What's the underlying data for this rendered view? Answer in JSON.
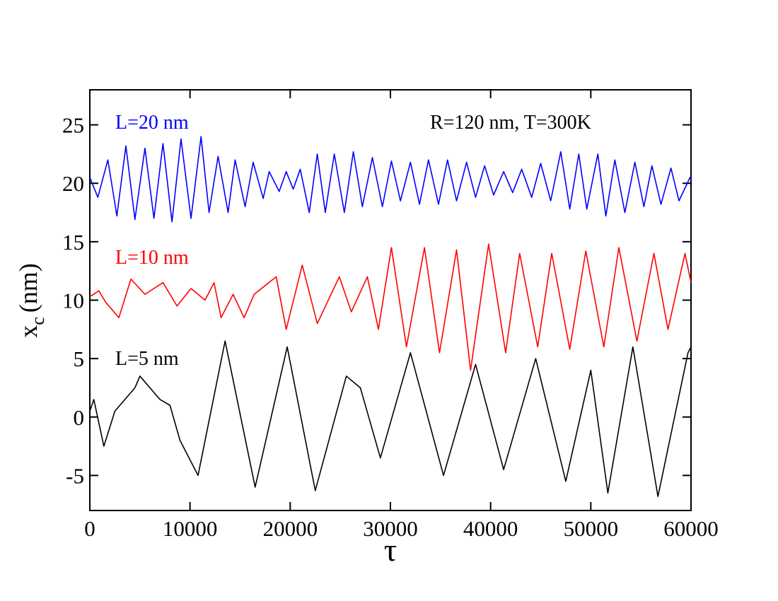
{
  "chart_data": {
    "type": "line",
    "annotation": "R=120 nm,  T=300K",
    "xlabel": "τ",
    "ylabel": {
      "base": "x",
      "sub": "c",
      "unit": "(nm)"
    },
    "xlim": [
      0,
      60000
    ],
    "xticks": [
      0,
      10000,
      20000,
      30000,
      40000,
      50000,
      60000
    ],
    "ylim": [
      -8,
      28
    ],
    "yticks": [
      -5,
      0,
      5,
      10,
      15,
      20,
      25
    ],
    "series": [
      {
        "name": "L=20 nm",
        "color": "#0000ff",
        "x": [
          0,
          800,
          1800,
          2700,
          3600,
          4500,
          5500,
          6400,
          7300,
          8200,
          9100,
          10100,
          11100,
          11900,
          12800,
          13800,
          14500,
          15500,
          16300,
          17300,
          17900,
          18900,
          19600,
          20300,
          21000,
          21900,
          22700,
          23500,
          24400,
          25400,
          26300,
          27200,
          28200,
          29200,
          30100,
          31000,
          32000,
          32900,
          33800,
          34800,
          35700,
          36600,
          37600,
          38500,
          39400,
          40300,
          41300,
          42200,
          43100,
          44100,
          45000,
          46000,
          47000,
          47900,
          48800,
          49600,
          50700,
          51500,
          52400,
          53400,
          54400,
          55300,
          56100,
          57000,
          58000,
          58800,
          59900,
          60000
        ],
        "values": [
          20.5,
          18.8,
          22,
          17.2,
          23.2,
          16.9,
          23,
          17,
          23.4,
          16.7,
          23.8,
          17,
          24,
          17.5,
          22.3,
          17.5,
          22,
          18,
          21.8,
          18.7,
          21,
          19.3,
          21,
          19.5,
          21.2,
          17.5,
          22.5,
          17.5,
          22.5,
          17.5,
          22.7,
          18,
          22.2,
          18,
          21.9,
          18.5,
          21.8,
          18.2,
          22,
          18.2,
          22,
          18.5,
          21.8,
          18.8,
          21.5,
          19,
          21,
          19.2,
          21.2,
          18.8,
          21.7,
          18.5,
          22.7,
          17.8,
          22.5,
          17.8,
          22.5,
          17.2,
          22,
          17.5,
          21.8,
          18,
          21.5,
          18.2,
          21.3,
          18.5,
          20.5,
          20.3
        ]
      },
      {
        "name": "L=10 nm",
        "color": "#ff0000",
        "x": [
          0,
          900,
          1600,
          2900,
          4100,
          5500,
          7300,
          8700,
          10100,
          11500,
          12400,
          13100,
          14300,
          15400,
          16400,
          18600,
          19600,
          21200,
          22700,
          24900,
          26100,
          27700,
          28800,
          30100,
          31600,
          33400,
          34900,
          36600,
          38000,
          39800,
          41500,
          42900,
          44700,
          46100,
          47900,
          49500,
          51300,
          52800,
          54600,
          56300,
          57700,
          59400,
          60000
        ],
        "values": [
          10.3,
          10.8,
          9.8,
          8.5,
          11.8,
          10.5,
          11.5,
          9.5,
          11,
          10,
          11.5,
          8.5,
          10.5,
          8.5,
          10.5,
          12,
          7.5,
          13,
          8,
          12,
          9,
          12,
          7.5,
          14.5,
          6,
          14.5,
          5.5,
          14.3,
          4,
          14.8,
          5.5,
          14,
          6,
          14,
          5.8,
          14.2,
          6,
          14.5,
          6.5,
          14,
          7.5,
          14,
          11.5
        ]
      },
      {
        "name": "L=5 nm",
        "color": "#000000",
        "x": [
          0,
          400,
          1400,
          2500,
          4500,
          5000,
          7000,
          8000,
          9000,
          10500,
          10800,
          13500,
          16500,
          19700,
          22500,
          25600,
          27000,
          29000,
          32000,
          35300,
          38500,
          41300,
          44500,
          47500,
          50000,
          51700,
          54200,
          56700,
          59700,
          60000
        ],
        "values": [
          0.5,
          1.5,
          -2.5,
          0.5,
          2.5,
          3.5,
          1.5,
          1,
          -2,
          -4.5,
          -5,
          6.5,
          -6,
          6,
          -6.3,
          3.5,
          2.5,
          -3.5,
          5.5,
          -5,
          4.5,
          -4.5,
          5,
          -5.5,
          4,
          -6.5,
          6,
          -6.8,
          5.5,
          6
        ]
      }
    ]
  }
}
